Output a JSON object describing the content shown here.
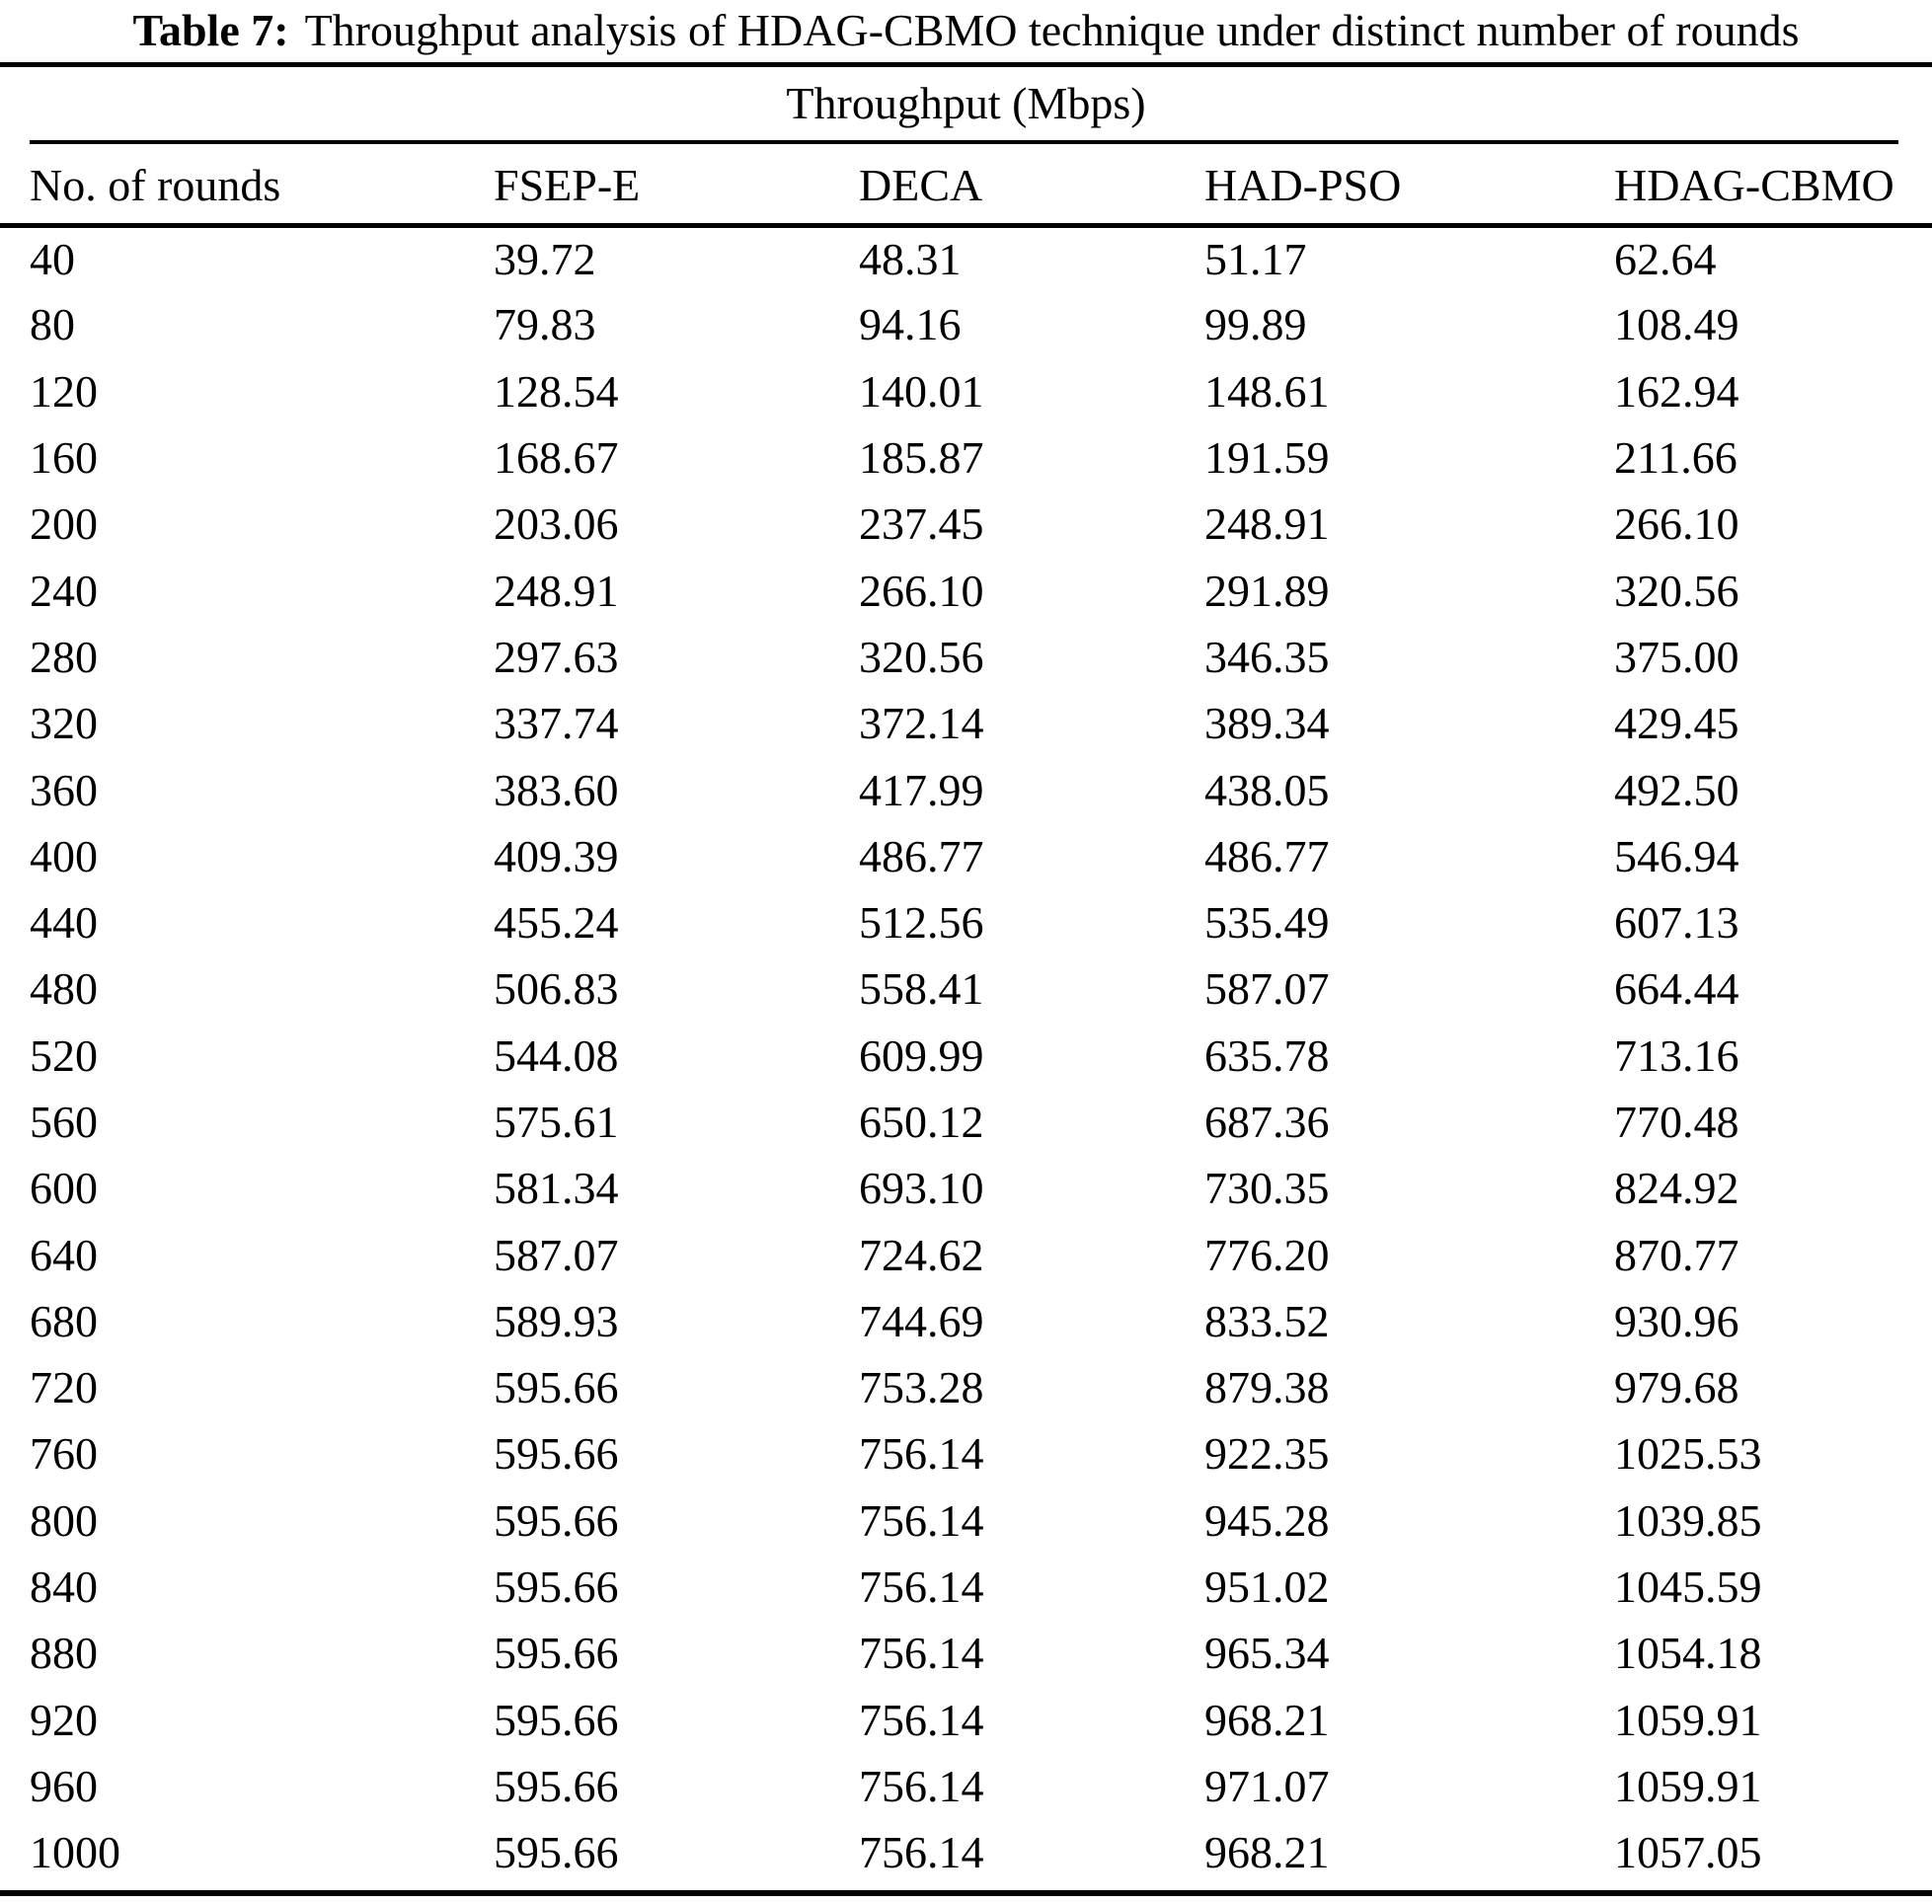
{
  "caption": {
    "label": "Table 7:",
    "text": "Throughput analysis of HDAG-CBMO technique under distinct number of rounds"
  },
  "table": {
    "spanning_header": "Throughput (Mbps)",
    "columns": [
      "No. of rounds",
      "FSEP-E",
      "DECA",
      "HAD-PSO",
      "HDAG-CBMO"
    ],
    "rows": [
      [
        "40",
        "39.72",
        "48.31",
        "51.17",
        "62.64"
      ],
      [
        "80",
        "79.83",
        "94.16",
        "99.89",
        "108.49"
      ],
      [
        "120",
        "128.54",
        "140.01",
        "148.61",
        "162.94"
      ],
      [
        "160",
        "168.67",
        "185.87",
        "191.59",
        "211.66"
      ],
      [
        "200",
        "203.06",
        "237.45",
        "248.91",
        "266.10"
      ],
      [
        "240",
        "248.91",
        "266.10",
        "291.89",
        "320.56"
      ],
      [
        "280",
        "297.63",
        "320.56",
        "346.35",
        "375.00"
      ],
      [
        "320",
        "337.74",
        "372.14",
        "389.34",
        "429.45"
      ],
      [
        "360",
        "383.60",
        "417.99",
        "438.05",
        "492.50"
      ],
      [
        "400",
        "409.39",
        "486.77",
        "486.77",
        "546.94"
      ],
      [
        "440",
        "455.24",
        "512.56",
        "535.49",
        "607.13"
      ],
      [
        "480",
        "506.83",
        "558.41",
        "587.07",
        "664.44"
      ],
      [
        "520",
        "544.08",
        "609.99",
        "635.78",
        "713.16"
      ],
      [
        "560",
        "575.61",
        "650.12",
        "687.36",
        "770.48"
      ],
      [
        "600",
        "581.34",
        "693.10",
        "730.35",
        "824.92"
      ],
      [
        "640",
        "587.07",
        "724.62",
        "776.20",
        "870.77"
      ],
      [
        "680",
        "589.93",
        "744.69",
        "833.52",
        "930.96"
      ],
      [
        "720",
        "595.66",
        "753.28",
        "879.38",
        "979.68"
      ],
      [
        "760",
        "595.66",
        "756.14",
        "922.35",
        "1025.53"
      ],
      [
        "800",
        "595.66",
        "756.14",
        "945.28",
        "1039.85"
      ],
      [
        "840",
        "595.66",
        "756.14",
        "951.02",
        "1045.59"
      ],
      [
        "880",
        "595.66",
        "756.14",
        "965.34",
        "1054.18"
      ],
      [
        "920",
        "595.66",
        "756.14",
        "968.21",
        "1059.91"
      ],
      [
        "960",
        "595.66",
        "756.14",
        "971.07",
        "1059.91"
      ],
      [
        "1000",
        "595.66",
        "756.14",
        "968.21",
        "1057.05"
      ]
    ]
  }
}
